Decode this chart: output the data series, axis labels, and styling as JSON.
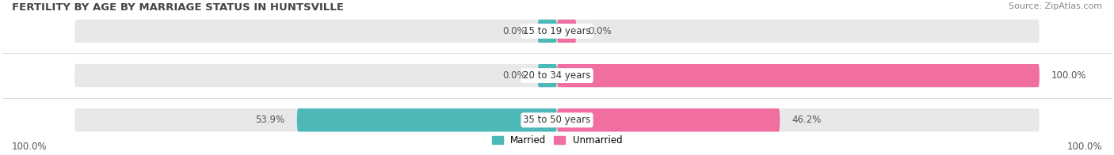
{
  "title": "FERTILITY BY AGE BY MARRIAGE STATUS IN HUNTSVILLE",
  "source": "Source: ZipAtlas.com",
  "categories": [
    "15 to 19 years",
    "20 to 34 years",
    "35 to 50 years"
  ],
  "married": [
    0.0,
    0.0,
    53.9
  ],
  "unmarried": [
    0.0,
    100.0,
    46.2
  ],
  "married_color": "#4db8b8",
  "unmarried_color": "#f06fa0",
  "bar_bg_color": "#e8e8e8",
  "title_fontsize": 9.5,
  "source_fontsize": 8,
  "label_fontsize": 8.5,
  "cat_fontsize": 8.5,
  "bar_height": 0.52,
  "max_val": 100.0,
  "left_label": "100.0%",
  "right_label": "100.0%",
  "fig_width": 14.06,
  "fig_height": 1.96
}
